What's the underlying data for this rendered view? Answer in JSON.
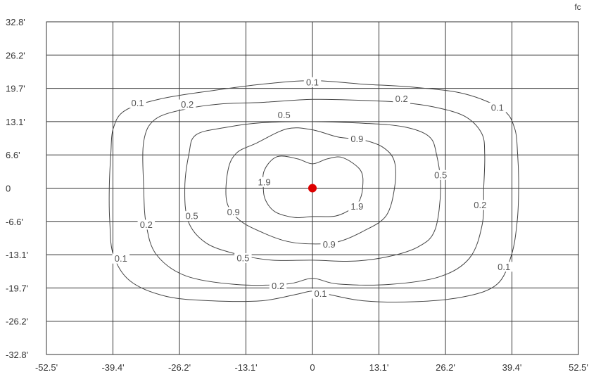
{
  "chart_data": {
    "type": "contour",
    "unit": "fc",
    "x_ticks": [
      "-52.5'",
      "-39.4'",
      "-26.2'",
      "-13.1'",
      "0",
      "13.1'",
      "26.2'",
      "39.4'",
      "52.5'"
    ],
    "y_ticks": [
      "32.8'",
      "26.2'",
      "19.7'",
      "13.1'",
      "6.6'",
      "0",
      "-6.6'",
      "-13.1'",
      "-19.7'",
      "-26.2'",
      "-32.8'"
    ],
    "xlim": [
      -52.5,
      52.5
    ],
    "ylim": [
      -32.8,
      32.8
    ],
    "grid": true,
    "source_marker": {
      "x": 0,
      "y": 0,
      "color": "#dd0000"
    },
    "contours": [
      {
        "level": "0.1",
        "points": [
          [
            0,
            21.2
          ],
          [
            -10,
            20.5
          ],
          [
            -20,
            19.2
          ],
          [
            -30,
            17.6
          ],
          [
            -37,
            15.3
          ],
          [
            -39.3,
            11.8
          ],
          [
            -39.8,
            6.6
          ],
          [
            -40.1,
            0
          ],
          [
            -40,
            -6.6
          ],
          [
            -39.3,
            -13.1
          ],
          [
            -36,
            -18.3
          ],
          [
            -29,
            -21.3
          ],
          [
            -20,
            -22.2
          ],
          [
            -10,
            -22.2
          ],
          [
            -3,
            -20.9
          ],
          [
            0,
            -20.3
          ],
          [
            3,
            -20.9
          ],
          [
            10,
            -22.2
          ],
          [
            20,
            -22.4
          ],
          [
            30,
            -21.4
          ],
          [
            36.5,
            -18.9
          ],
          [
            39.3,
            -13.1
          ],
          [
            40.4,
            -6.6
          ],
          [
            40.7,
            0
          ],
          [
            40.5,
            6.6
          ],
          [
            39.9,
            11.8
          ],
          [
            37.5,
            15.5
          ],
          [
            30,
            18.6
          ],
          [
            20,
            19.9
          ],
          [
            10,
            20.5
          ]
        ],
        "labels": [
          [
            0,
            20.9
          ],
          [
            -34.5,
            16.8
          ],
          [
            36.5,
            15.9
          ],
          [
            -37.8,
            -13.9
          ],
          [
            37.8,
            -15.5
          ],
          [
            1.6,
            -20.8
          ]
        ]
      },
      {
        "level": "0.2",
        "points": [
          [
            0,
            17.5
          ],
          [
            -10,
            16.9
          ],
          [
            -18,
            16.6
          ],
          [
            -25,
            15.6
          ],
          [
            -31,
            13.6
          ],
          [
            -33.3,
            9.2
          ],
          [
            -33.3,
            0
          ],
          [
            -32.8,
            -7.2
          ],
          [
            -30.8,
            -13.1
          ],
          [
            -25,
            -17.3
          ],
          [
            -15,
            -19
          ],
          [
            -5,
            -18.9
          ],
          [
            0,
            -17.8
          ],
          [
            5,
            -18.9
          ],
          [
            15,
            -19
          ],
          [
            25,
            -17.5
          ],
          [
            31,
            -13.8
          ],
          [
            33.5,
            -7.2
          ],
          [
            33.8,
            0
          ],
          [
            34,
            6.6
          ],
          [
            33.4,
            10.8
          ],
          [
            30,
            14.2
          ],
          [
            24,
            16
          ],
          [
            17.5,
            16.9
          ],
          [
            10,
            17.3
          ]
        ],
        "labels": [
          [
            17.6,
            17.6
          ],
          [
            -24.7,
            16.5
          ],
          [
            -32.8,
            -7.2
          ],
          [
            33.1,
            -3.3
          ],
          [
            -6.8,
            -19.3
          ]
        ]
      },
      {
        "level": "0.5",
        "points": [
          [
            0,
            13.1
          ],
          [
            -10,
            12.9
          ],
          [
            -17,
            12
          ],
          [
            -23,
            10.5
          ],
          [
            -24.4,
            6.6
          ],
          [
            -25.2,
            0
          ],
          [
            -24.5,
            -6.6
          ],
          [
            -21,
            -10.8
          ],
          [
            -15,
            -13
          ],
          [
            -8,
            -14.2
          ],
          [
            0,
            -14.2
          ],
          [
            8,
            -14.4
          ],
          [
            15,
            -13.5
          ],
          [
            21,
            -11.5
          ],
          [
            24.2,
            -8.2
          ],
          [
            25.3,
            0
          ],
          [
            24.5,
            6.6
          ],
          [
            23,
            10.2
          ],
          [
            18,
            12.1
          ],
          [
            10,
            12.8
          ]
        ],
        "labels": [
          [
            -5.6,
            14.4
          ],
          [
            -23.8,
            -5.5
          ],
          [
            25.3,
            2.6
          ],
          [
            -13.7,
            -13.8
          ]
        ]
      },
      {
        "level": "0.9",
        "points": [
          [
            0,
            11.5
          ],
          [
            -5,
            11.7
          ],
          [
            -11,
            8.9
          ],
          [
            -15,
            6.9
          ],
          [
            -16.7,
            3.4
          ],
          [
            -16.9,
            -2.7
          ],
          [
            -14.4,
            -6.3
          ],
          [
            -10,
            -8.7
          ],
          [
            -5,
            -10.5
          ],
          [
            0,
            -11
          ],
          [
            5,
            -10.6
          ],
          [
            10,
            -8.5
          ],
          [
            14.5,
            -5.5
          ],
          [
            16.2,
            0
          ],
          [
            16.2,
            5.2
          ],
          [
            14,
            8
          ],
          [
            10,
            9.5
          ],
          [
            5,
            10.1
          ]
        ],
        "labels": [
          [
            8.8,
            9.7
          ],
          [
            -15.6,
            -4.7
          ],
          [
            3.3,
            -11.1
          ]
        ]
      },
      {
        "level": "1.9",
        "points": [
          [
            0,
            4.8
          ],
          [
            -3,
            5.8
          ],
          [
            -7,
            6.2
          ],
          [
            -9.5,
            3.5
          ],
          [
            -9.7,
            0
          ],
          [
            -9.2,
            -2.5
          ],
          [
            -7.3,
            -4.7
          ],
          [
            -3.5,
            -5.8
          ],
          [
            0,
            -5.6
          ],
          [
            4.5,
            -5.5
          ],
          [
            7.5,
            -4.2
          ],
          [
            9.1,
            -2.8
          ],
          [
            9.9,
            0
          ],
          [
            9.5,
            3.5
          ],
          [
            6,
            6
          ],
          [
            3,
            5.8
          ]
        ],
        "labels": [
          [
            -9.5,
            1.2
          ],
          [
            8.8,
            -3.6
          ]
        ]
      }
    ]
  }
}
